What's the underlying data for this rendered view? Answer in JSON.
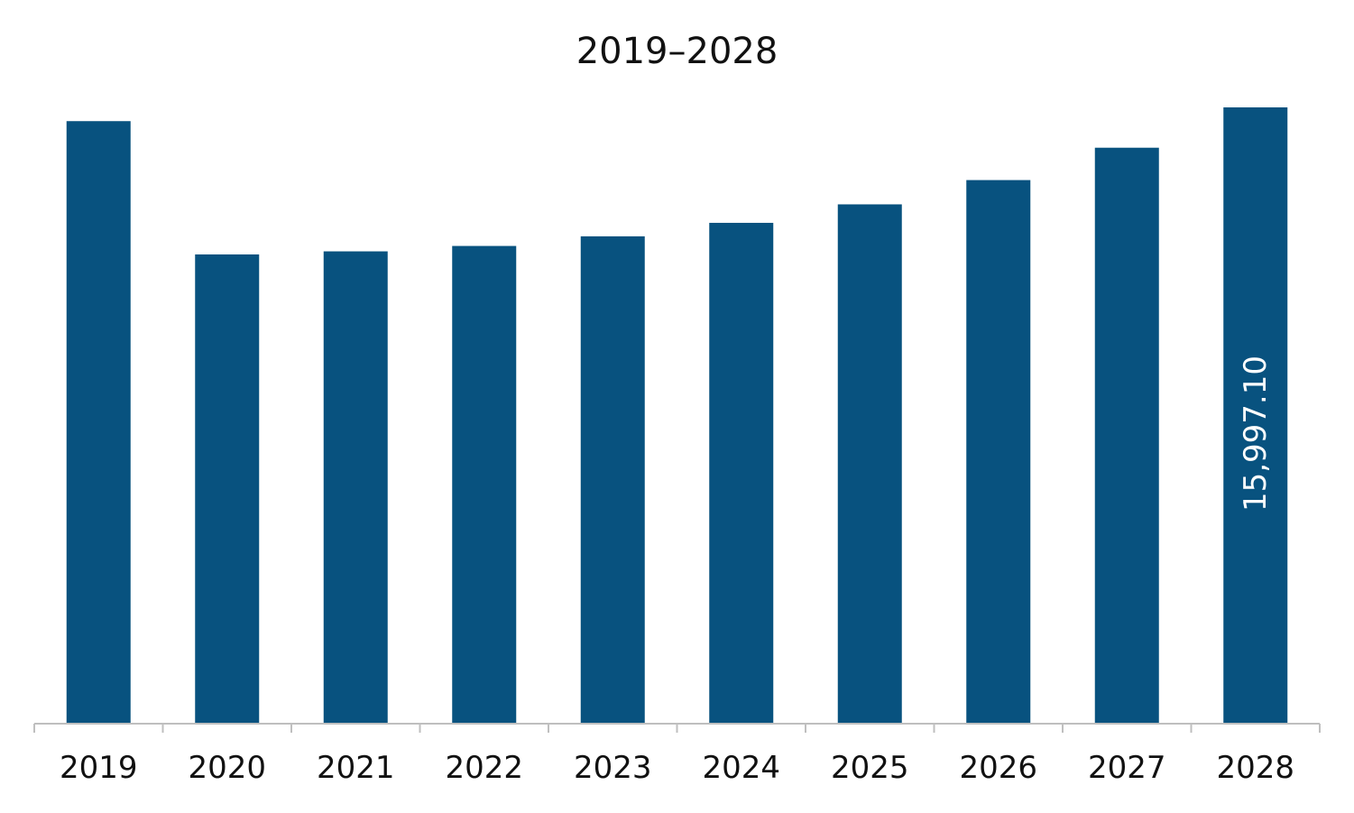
{
  "chart_data": {
    "type": "bar",
    "title": "2019–2028",
    "xlabel": "",
    "ylabel": "",
    "categories": [
      "2019",
      "2020",
      "2021",
      "2022",
      "2023",
      "2024",
      "2025",
      "2026",
      "2027",
      "2028"
    ],
    "values": [
      15640,
      12180,
      12260,
      12400,
      12650,
      13000,
      13480,
      14110,
      14950,
      15997.1
    ],
    "data_labels": [
      "",
      "",
      "",
      "",
      "",
      "",
      "",
      "",
      "",
      "15,997.10"
    ],
    "ylim": [
      0,
      16000
    ],
    "grid": false,
    "legend": "none",
    "bar_color": "#08527F",
    "label_color": "#FFFFFF"
  }
}
